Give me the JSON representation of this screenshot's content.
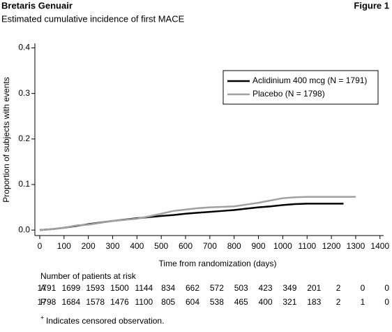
{
  "chart_data": {
    "type": "line",
    "header": "Bretaris Genuair",
    "figure_label": "Figure 1",
    "title": "Estimated cumulative incidence of first MACE",
    "x_label": "Time from randomization (days)",
    "y_label": "Proportion of subjects with events",
    "xlim": [
      -20,
      1415
    ],
    "ylim": [
      -0.012,
      0.41
    ],
    "xticks": [
      0,
      100,
      200,
      300,
      400,
      500,
      600,
      700,
      800,
      900,
      1000,
      1100,
      1200,
      1300,
      1400
    ],
    "yticks": [
      {
        "value": 0,
        "label": "0.0"
      },
      0.1,
      0.2,
      0.3,
      0.4
    ],
    "legend": "upper right",
    "series": [
      {
        "name": "Aclidinium 400 mcg (N = 1791)",
        "color": "#000000",
        "x": [
          0,
          50,
          100,
          150,
          200,
          300,
          400,
          500,
          550,
          600,
          650,
          700,
          750,
          800,
          850,
          900,
          950,
          1000,
          1050,
          1100,
          1150,
          1200,
          1250
        ],
        "values": [
          0,
          0.002,
          0.005,
          0.009,
          0.013,
          0.02,
          0.026,
          0.031,
          0.033,
          0.036,
          0.038,
          0.04,
          0.042,
          0.044,
          0.047,
          0.05,
          0.052,
          0.055,
          0.057,
          0.058,
          0.058,
          0.058,
          0.058
        ]
      },
      {
        "name": "Placebo (N = 1798)",
        "color": "#a0a0a0",
        "x": [
          0,
          50,
          100,
          150,
          200,
          300,
          400,
          450,
          500,
          550,
          600,
          650,
          700,
          750,
          800,
          850,
          900,
          950,
          1000,
          1050,
          1100,
          1200,
          1300
        ],
        "values": [
          0,
          0.002,
          0.005,
          0.01,
          0.012,
          0.02,
          0.025,
          0.03,
          0.036,
          0.042,
          0.045,
          0.048,
          0.05,
          0.051,
          0.052,
          0.056,
          0.06,
          0.065,
          0.07,
          0.072,
          0.073,
          0.073,
          0.073
        ]
      }
    ],
    "risk_table": {
      "title": "Number of patients at risk",
      "rows": [
        {
          "label": "A",
          "values": [
            1791,
            1699,
            1593,
            1500,
            1144,
            834,
            662,
            572,
            503,
            423,
            349,
            201,
            2,
            0,
            0
          ]
        },
        {
          "label": "P",
          "values": [
            1798,
            1684,
            1578,
            1476,
            1100,
            805,
            604,
            538,
            465,
            400,
            321,
            183,
            2,
            1,
            0
          ]
        }
      ]
    },
    "footnote_symbol": "+",
    "footnote": "Indicates censored observation."
  }
}
